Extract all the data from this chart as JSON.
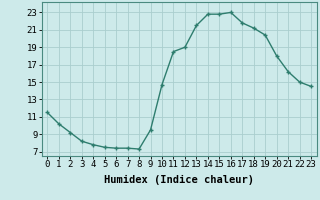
{
  "x": [
    0,
    1,
    2,
    3,
    4,
    5,
    6,
    7,
    8,
    9,
    10,
    11,
    12,
    13,
    14,
    15,
    16,
    17,
    18,
    19,
    20,
    21,
    22,
    23
  ],
  "y": [
    11.5,
    10.2,
    9.2,
    8.2,
    7.8,
    7.5,
    7.4,
    7.4,
    7.3,
    9.5,
    14.7,
    18.5,
    19.0,
    21.5,
    22.8,
    22.8,
    23.0,
    21.8,
    21.2,
    20.4,
    18.0,
    16.2,
    15.0,
    14.5
  ],
  "line_color": "#2e7d6e",
  "marker": "+",
  "background_color": "#cdeaea",
  "grid_color": "#aacece",
  "xlabel": "Humidex (Indice chaleur)",
  "ylabel_ticks": [
    7,
    9,
    11,
    13,
    15,
    17,
    19,
    21,
    23
  ],
  "xlim": [
    -0.5,
    23.5
  ],
  "ylim": [
    6.5,
    24.2
  ],
  "xtick_labels": [
    "0",
    "1",
    "2",
    "3",
    "4",
    "5",
    "6",
    "7",
    "8",
    "9",
    "10",
    "11",
    "12",
    "13",
    "14",
    "15",
    "16",
    "17",
    "18",
    "19",
    "20",
    "21",
    "22",
    "23"
  ],
  "tick_fontsize": 6.5,
  "label_fontsize": 7.5,
  "label_fontweight": "bold"
}
